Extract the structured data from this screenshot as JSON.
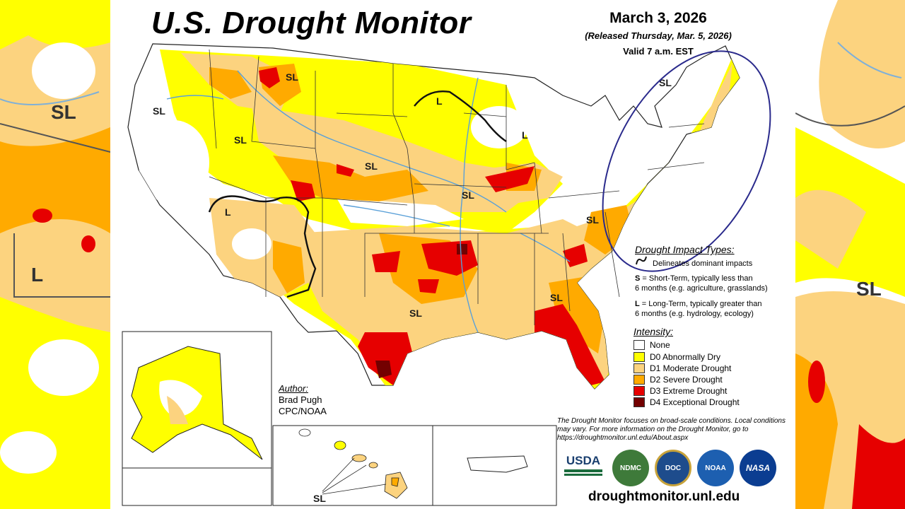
{
  "title": "U.S. Drought Monitor",
  "date": "March 3, 2026",
  "released": "(Released Thursday, Mar. 5, 2026)",
  "valid": "Valid 7 a.m. EST",
  "impact": {
    "heading": "Drought Impact Types:",
    "delineates": "Delineates dominant impacts",
    "short_term_key": "S",
    "short_term": "= Short-Term, typically less than",
    "short_term_2": "6 months (e.g. agriculture, grasslands)",
    "long_term_key": "L",
    "long_term": "= Long-Term, typically greater than",
    "long_term_2": "6 months (e.g. hydrology, ecology)"
  },
  "intensity": {
    "heading": "Intensity:",
    "items": [
      {
        "label": "None",
        "color": "#ffffff"
      },
      {
        "label": "D0 Abnormally Dry",
        "color": "#ffff00"
      },
      {
        "label": "D1 Moderate Drought",
        "color": "#fcd37f"
      },
      {
        "label": "D2 Severe Drought",
        "color": "#ffaa00"
      },
      {
        "label": "D3 Extreme Drought",
        "color": "#e60000"
      },
      {
        "label": "D4 Exceptional Drought",
        "color": "#730000"
      }
    ]
  },
  "author": {
    "heading": "Author:",
    "name": "Brad Pugh",
    "org": "CPC/NOAA"
  },
  "note": "The Drought Monitor focuses on broad-scale conditions. Local conditions may vary. For more information on the Drought Monitor, go to https://droughtmonitor.unl.edu/About.aspx",
  "url": "droughtmonitor.unl.edu",
  "logos": [
    "USDA",
    "NDMC",
    "DOC",
    "NOAA",
    "NASA"
  ],
  "map_labels": {
    "sl_nw": "SL",
    "sl_or": "SL",
    "sl_mt": "SL",
    "sl_sd": "SL",
    "sl_il": "SL",
    "sl_va": "SL",
    "sl_ga": "SL",
    "sl_tx": "SL",
    "sl_me": "SL",
    "sl_hi": "SL",
    "l_mn": "L",
    "l_mi": "L",
    "l_sw": "L",
    "side_left_sl": "SL",
    "side_left_l": "L",
    "side_right_sl": "SL"
  }
}
